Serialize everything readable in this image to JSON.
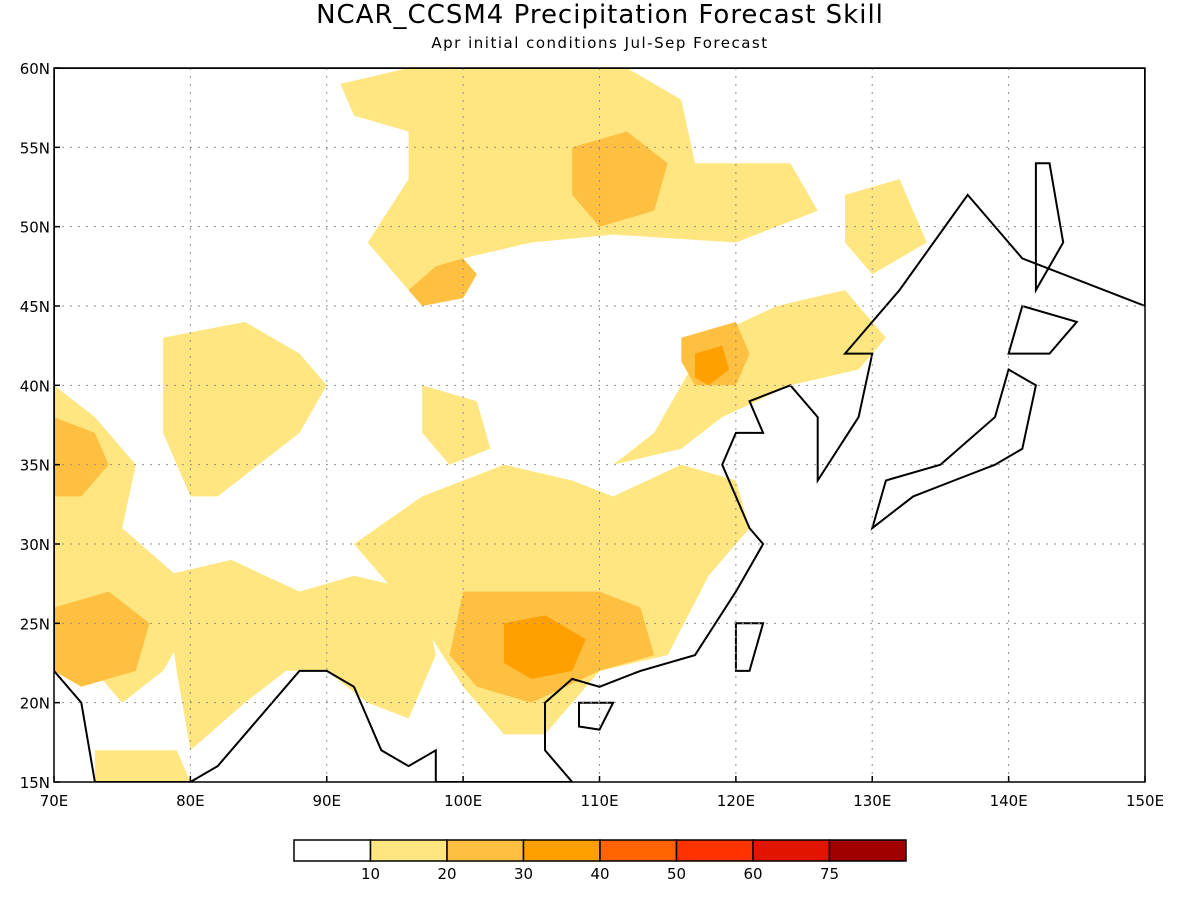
{
  "title": "NCAR_CCSM4 Precipitation Forecast Skill",
  "subtitle": "Apr initial conditions   Jul-Sep Forecast",
  "map_data": {
    "lon_range": [
      70,
      150
    ],
    "lat_range": [
      15,
      60
    ],
    "lon_ticks": [
      "70E",
      "80E",
      "90E",
      "100E",
      "110E",
      "120E",
      "130E",
      "140E",
      "150E"
    ],
    "lon_values": [
      70,
      80,
      90,
      100,
      110,
      120,
      130,
      140,
      150
    ],
    "lat_ticks": [
      "15N",
      "20N",
      "25N",
      "30N",
      "35N",
      "40N",
      "45N",
      "50N",
      "55N",
      "60N"
    ],
    "lat_values": [
      15,
      20,
      25,
      30,
      35,
      40,
      45,
      50,
      55,
      60
    ],
    "gridlines": true,
    "colorbar": {
      "labels": [
        "10",
        "20",
        "30",
        "40",
        "50",
        "60",
        "75"
      ],
      "colors": [
        "#ffffff",
        "#ffe680",
        "#ffbf40",
        "#ffa000",
        "#ff6400",
        "#ff3200",
        "#e11400",
        "#a00000"
      ]
    },
    "regions": [
      {
        "level": 1,
        "name": "north-mongolia-siberia",
        "poly": [
          [
            91,
            59
          ],
          [
            96,
            60
          ],
          [
            112,
            60
          ],
          [
            116,
            58
          ],
          [
            117,
            54
          ],
          [
            124,
            54
          ],
          [
            126,
            51
          ],
          [
            120,
            49
          ],
          [
            111,
            49.5
          ],
          [
            105,
            49
          ],
          [
            100,
            48
          ],
          [
            96,
            46
          ],
          [
            95,
            47
          ],
          [
            93,
            49
          ],
          [
            96,
            53
          ],
          [
            96,
            56
          ],
          [
            92,
            57
          ]
        ]
      },
      {
        "level": 1,
        "name": "west-tarim",
        "poly": [
          [
            78,
            43
          ],
          [
            84,
            44
          ],
          [
            88,
            42
          ],
          [
            90,
            40
          ],
          [
            88,
            37
          ],
          [
            85,
            35
          ],
          [
            82,
            33
          ],
          [
            80,
            33
          ],
          [
            78,
            37
          ]
        ]
      },
      {
        "level": 1,
        "name": "north-china-plain",
        "poly": [
          [
            111,
            35
          ],
          [
            114,
            37
          ],
          [
            118,
            43
          ],
          [
            123,
            45
          ],
          [
            128,
            46
          ],
          [
            131,
            43
          ],
          [
            129,
            41
          ],
          [
            124,
            40
          ],
          [
            119,
            38
          ],
          [
            116,
            36
          ]
        ]
      },
      {
        "level": 1,
        "name": "south-china",
        "poly": [
          [
            97,
            33
          ],
          [
            103,
            35
          ],
          [
            108,
            34
          ],
          [
            111,
            33
          ],
          [
            116,
            35
          ],
          [
            120,
            34
          ],
          [
            121,
            31
          ],
          [
            118,
            28
          ],
          [
            115,
            23
          ],
          [
            110,
            22
          ],
          [
            106,
            18
          ],
          [
            103,
            18
          ],
          [
            100,
            21
          ],
          [
            97,
            25
          ],
          [
            95,
            27
          ],
          [
            92,
            30
          ]
        ]
      },
      {
        "level": 1,
        "name": "himalaya-bangladesh",
        "poly": [
          [
            78,
            28
          ],
          [
            83,
            29
          ],
          [
            88,
            27
          ],
          [
            92,
            28
          ],
          [
            97,
            27
          ],
          [
            98,
            23
          ],
          [
            96,
            19
          ],
          [
            93,
            20
          ],
          [
            90,
            22
          ],
          [
            87,
            22
          ],
          [
            84,
            20
          ],
          [
            80,
            17
          ],
          [
            79,
            22
          ]
        ]
      },
      {
        "level": 1,
        "name": "west-india-pakistan",
        "poly": [
          [
            70,
            40
          ],
          [
            73,
            38
          ],
          [
            76,
            35
          ],
          [
            75,
            31
          ],
          [
            79,
            28
          ],
          [
            80,
            25
          ],
          [
            78,
            22
          ],
          [
            75,
            20
          ],
          [
            73,
            22
          ],
          [
            70,
            23
          ]
        ]
      },
      {
        "level": 1,
        "name": "south-india",
        "poly": [
          [
            73,
            17
          ],
          [
            79,
            17
          ],
          [
            80,
            15
          ],
          [
            73,
            15
          ]
        ]
      },
      {
        "level": 1,
        "name": "east-manchuria",
        "poly": [
          [
            128,
            52
          ],
          [
            132,
            53
          ],
          [
            134,
            49
          ],
          [
            130,
            47
          ],
          [
            128,
            49
          ]
        ]
      },
      {
        "level": 1,
        "name": "tibet-north",
        "poly": [
          [
            97,
            40
          ],
          [
            101,
            39
          ],
          [
            102,
            36
          ],
          [
            99,
            35
          ],
          [
            97,
            37
          ]
        ]
      },
      {
        "level": 2,
        "name": "mongolia-core",
        "poly": [
          [
            96,
            46
          ],
          [
            98,
            47.5
          ],
          [
            100,
            48
          ],
          [
            101,
            47
          ],
          [
            100,
            45.5
          ],
          [
            97,
            45
          ]
        ]
      },
      {
        "level": 2,
        "name": "baikal-east",
        "poly": [
          [
            108,
            55
          ],
          [
            112,
            56
          ],
          [
            115,
            54
          ],
          [
            114,
            51
          ],
          [
            110,
            50
          ],
          [
            108,
            52
          ]
        ]
      },
      {
        "level": 2,
        "name": "north-china-orange",
        "poly": [
          [
            116,
            43
          ],
          [
            120,
            44
          ],
          [
            121,
            42
          ],
          [
            120,
            40
          ],
          [
            117,
            40
          ],
          [
            116,
            41.5
          ]
        ]
      },
      {
        "level": 2,
        "name": "south-china-orange",
        "poly": [
          [
            100,
            27
          ],
          [
            105,
            27
          ],
          [
            110,
            27
          ],
          [
            113,
            26
          ],
          [
            114,
            23
          ],
          [
            110,
            22
          ],
          [
            105,
            20
          ],
          [
            101,
            21
          ],
          [
            99,
            23
          ]
        ]
      },
      {
        "level": 2,
        "name": "west-india-orange",
        "poly": [
          [
            70,
            26
          ],
          [
            74,
            27
          ],
          [
            77,
            25
          ],
          [
            76,
            22
          ],
          [
            72,
            21
          ],
          [
            70,
            22
          ]
        ]
      },
      {
        "level": 2,
        "name": "pakistan-orange",
        "poly": [
          [
            70,
            38
          ],
          [
            73,
            37
          ],
          [
            74,
            35
          ],
          [
            72,
            33
          ],
          [
            70,
            33
          ]
        ]
      },
      {
        "level": 3,
        "name": "guangxi-core",
        "poly": [
          [
            103,
            25
          ],
          [
            106,
            25.5
          ],
          [
            109,
            24
          ],
          [
            108,
            22
          ],
          [
            105,
            21.5
          ],
          [
            103,
            22.5
          ]
        ]
      },
      {
        "level": 3,
        "name": "north-china-core",
        "poly": [
          [
            117,
            42
          ],
          [
            119,
            42.5
          ],
          [
            119.5,
            41
          ],
          [
            118,
            40
          ],
          [
            117,
            40.5
          ]
        ]
      }
    ],
    "landmasses": [
      {
        "name": "asia-mainland",
        "poly": [
          [
            70,
            60
          ],
          [
            150,
            60
          ],
          [
            150,
            45
          ],
          [
            141,
            48
          ],
          [
            137,
            52
          ],
          [
            132,
            46
          ],
          [
            128,
            42
          ],
          [
            130,
            42
          ],
          [
            129,
            38
          ],
          [
            126,
            34
          ],
          [
            126,
            38
          ],
          [
            124,
            40
          ],
          [
            121,
            39
          ],
          [
            122,
            37
          ],
          [
            120,
            37
          ],
          [
            119,
            35
          ],
          [
            121,
            31
          ],
          [
            122,
            30
          ],
          [
            120,
            27
          ],
          [
            117,
            23
          ],
          [
            113,
            22
          ],
          [
            110,
            21
          ],
          [
            108,
            21.5
          ],
          [
            106,
            20
          ],
          [
            106,
            17
          ],
          [
            108,
            15
          ],
          [
            98,
            15
          ],
          [
            98,
            17
          ],
          [
            96,
            16
          ],
          [
            94,
            17
          ],
          [
            92,
            21
          ],
          [
            90,
            22
          ],
          [
            88,
            22
          ],
          [
            87,
            21
          ],
          [
            85,
            19
          ],
          [
            82,
            16
          ],
          [
            80,
            15
          ],
          [
            73,
            15
          ],
          [
            72,
            20
          ],
          [
            70,
            22
          ]
        ]
      },
      {
        "name": "japan-honshu",
        "poly": [
          [
            130,
            31
          ],
          [
            131,
            34
          ],
          [
            135,
            35
          ],
          [
            139,
            38
          ],
          [
            140,
            41
          ],
          [
            142,
            40
          ],
          [
            141,
            36
          ],
          [
            139,
            35
          ],
          [
            136,
            34
          ],
          [
            133,
            33
          ]
        ]
      },
      {
        "name": "japan-hokkaido",
        "poly": [
          [
            140,
            42
          ],
          [
            141,
            45
          ],
          [
            145,
            44
          ],
          [
            143,
            42
          ]
        ]
      },
      {
        "name": "sakhalin",
        "poly": [
          [
            142,
            46
          ],
          [
            142,
            54
          ],
          [
            143,
            54
          ],
          [
            144,
            49
          ]
        ]
      },
      {
        "name": "taiwan",
        "poly": [
          [
            120,
            22
          ],
          [
            120,
            25
          ],
          [
            122,
            25
          ],
          [
            121,
            22
          ]
        ]
      },
      {
        "name": "hainan",
        "poly": [
          [
            108.5,
            18.5
          ],
          [
            108.5,
            20
          ],
          [
            111,
            20
          ],
          [
            110,
            18.3
          ]
        ]
      }
    ]
  }
}
